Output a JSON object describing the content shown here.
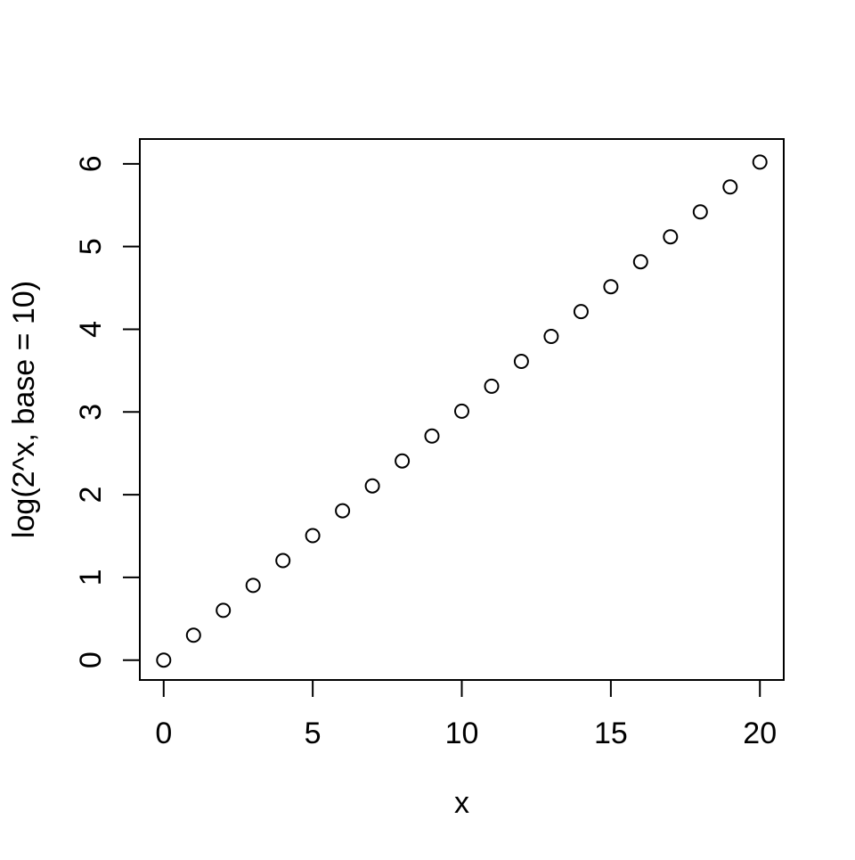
{
  "chart_data": {
    "type": "scatter",
    "title": "",
    "xlabel": "x",
    "ylabel": "log(2^x, base = 10)",
    "x": [
      0,
      1,
      2,
      3,
      4,
      5,
      6,
      7,
      8,
      9,
      10,
      11,
      12,
      13,
      14,
      15,
      16,
      17,
      18,
      19,
      20
    ],
    "y": [
      0,
      0.301,
      0.602,
      0.903,
      1.204,
      1.505,
      1.806,
      2.107,
      2.408,
      2.709,
      3.01,
      3.311,
      3.612,
      3.913,
      4.214,
      4.515,
      4.816,
      5.118,
      5.419,
      5.72,
      6.021
    ],
    "x_ticks": [
      0,
      5,
      10,
      15,
      20
    ],
    "y_ticks": [
      0,
      1,
      2,
      3,
      4,
      5,
      6
    ],
    "xlim": [
      -0.8,
      20.8
    ],
    "ylim": [
      -0.24,
      6.3
    ],
    "grid": false,
    "legend": null,
    "point_style": "open-circle",
    "point_color": "#000000",
    "frame_color": "#000000",
    "background_color": "#ffffff"
  }
}
